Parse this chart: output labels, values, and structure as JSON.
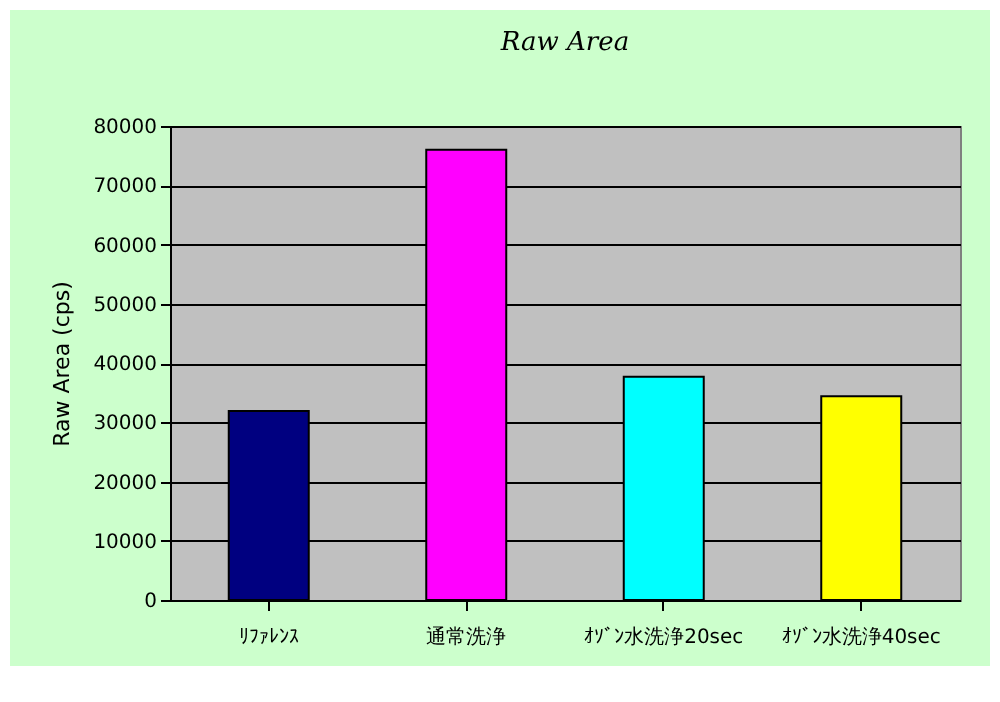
{
  "chart_data": {
    "type": "bar",
    "title": "Raw Area",
    "ylabel": "Raw Area (cps)",
    "categories": [
      "ﾘﾌｧﾚﾝｽ",
      "通常洗浄",
      "ｵｿﾞﾝ水洗浄20sec",
      "ｵｿﾞﾝ水洗浄40sec"
    ],
    "values": [
      31900,
      76000,
      37700,
      34400
    ],
    "colors": [
      "#000080",
      "#ff00ff",
      "#00ffff",
      "#ffff00"
    ],
    "ylim": [
      0,
      80000
    ],
    "yticks": [
      0,
      10000,
      20000,
      30000,
      40000,
      50000,
      60000,
      70000,
      80000
    ],
    "grid": "y"
  }
}
